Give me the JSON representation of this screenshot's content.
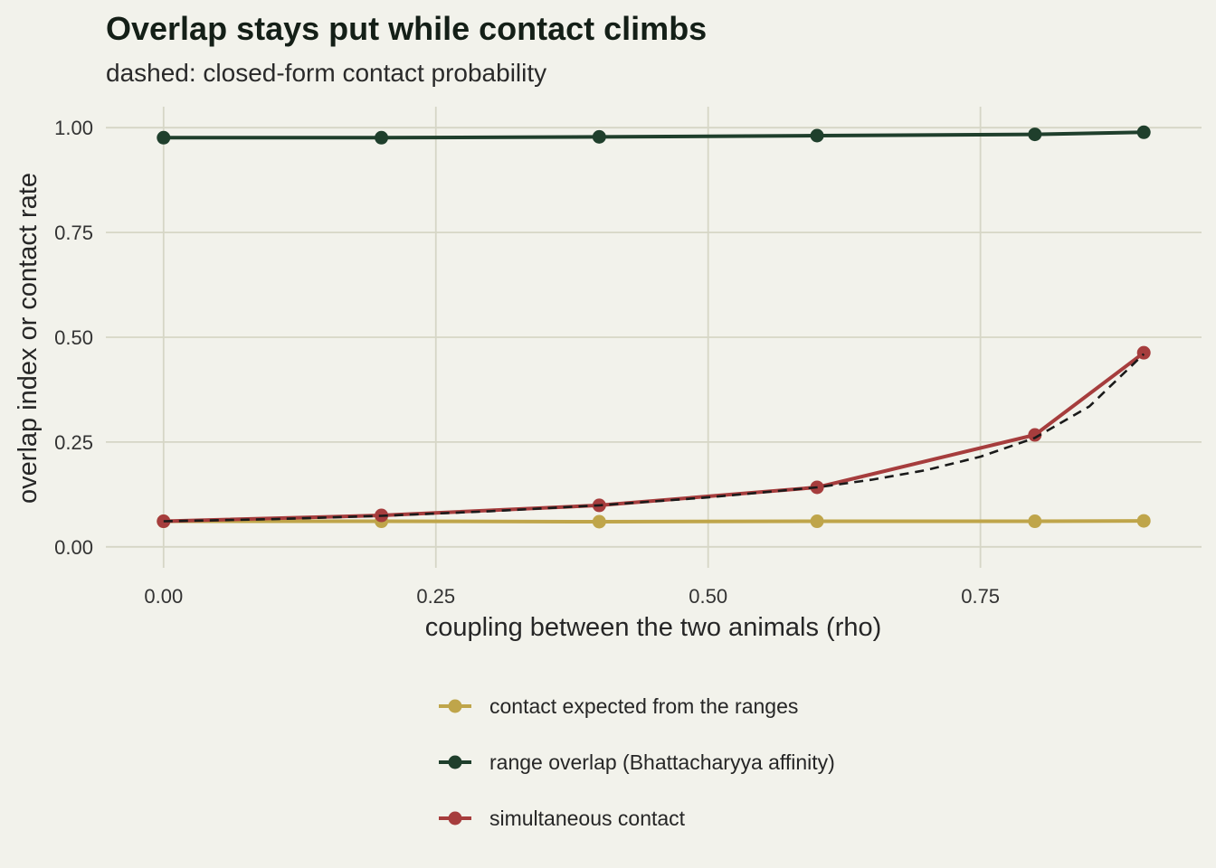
{
  "chart_data": {
    "type": "line",
    "title": "Overlap stays put while contact climbs",
    "subtitle": "dashed: closed-form contact probability",
    "xlabel": "coupling between the two animals (rho)",
    "ylabel": "overlap index or contact rate",
    "xlim": [
      -0.053,
      0.953
    ],
    "ylim": [
      -0.05,
      1.05
    ],
    "x_ticks": [
      0.0,
      0.25,
      0.5,
      0.75
    ],
    "x_tick_labels": [
      "0.00",
      "0.25",
      "0.50",
      "0.75"
    ],
    "y_ticks": [
      0.0,
      0.25,
      0.5,
      0.75,
      1.0
    ],
    "y_tick_labels": [
      "0.00",
      "0.25",
      "0.50",
      "0.75",
      "1.00"
    ],
    "grid": true,
    "legend_position": "bottom",
    "x": [
      0.0,
      0.2,
      0.4,
      0.6,
      0.8,
      0.9
    ],
    "series": [
      {
        "name": "contact expected from the ranges",
        "color": "#bfa54a",
        "values": [
          0.061,
          0.061,
          0.06,
          0.061,
          0.061,
          0.062
        ]
      },
      {
        "name": "range overlap (Bhattacharyya affinity)",
        "color": "#1f3f2c",
        "values": [
          0.976,
          0.976,
          0.978,
          0.981,
          0.984,
          0.989
        ]
      },
      {
        "name": "simultaneous contact",
        "color": "#a63d3d",
        "values": [
          0.061,
          0.075,
          0.099,
          0.142,
          0.267,
          0.463
        ]
      }
    ],
    "reference_curve": {
      "style": "dashed",
      "color": "#1a1a1a",
      "x": [
        0.0,
        0.1,
        0.2,
        0.3,
        0.4,
        0.5,
        0.6,
        0.65,
        0.7,
        0.75,
        0.8,
        0.85,
        0.9
      ],
      "values": [
        0.061,
        0.066,
        0.074,
        0.085,
        0.099,
        0.118,
        0.142,
        0.16,
        0.183,
        0.215,
        0.26,
        0.335,
        0.46
      ]
    }
  }
}
